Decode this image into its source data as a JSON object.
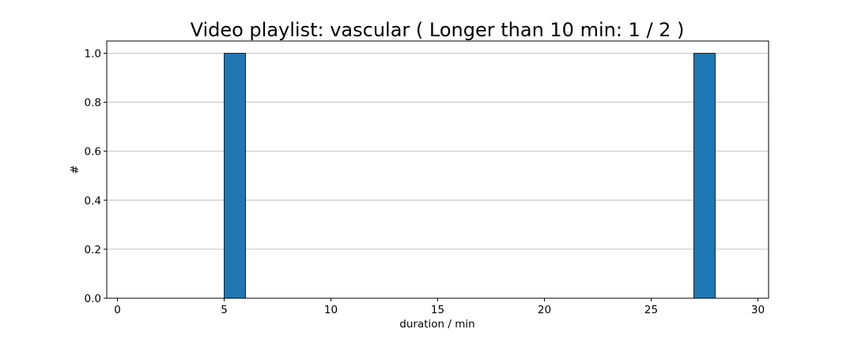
{
  "chart_data": {
    "type": "bar",
    "title": "Video playlist: vascular ( Longer than 10 min: 1 / 2 )",
    "xlabel": "duration / min",
    "ylabel": "#",
    "xlim": [
      -0.5,
      30.5
    ],
    "ylim": [
      0,
      1.05
    ],
    "x_ticks": [
      0,
      5,
      10,
      15,
      20,
      25,
      30
    ],
    "y_ticks": [
      0.0,
      0.2,
      0.4,
      0.6,
      0.8,
      1.0
    ],
    "x_tick_labels": [
      "0",
      "5",
      "10",
      "15",
      "20",
      "25",
      "30"
    ],
    "y_tick_labels": [
      "0.0",
      "0.2",
      "0.4",
      "0.6",
      "0.8",
      "1.0"
    ],
    "grid": "y-axis",
    "bars": [
      {
        "bin_start": 5,
        "bin_end": 6,
        "value": 1
      },
      {
        "bin_start": 27,
        "bin_end": 28,
        "value": 1
      }
    ],
    "bar_color": "#1f77b4",
    "bar_edge_color": "#000000"
  }
}
